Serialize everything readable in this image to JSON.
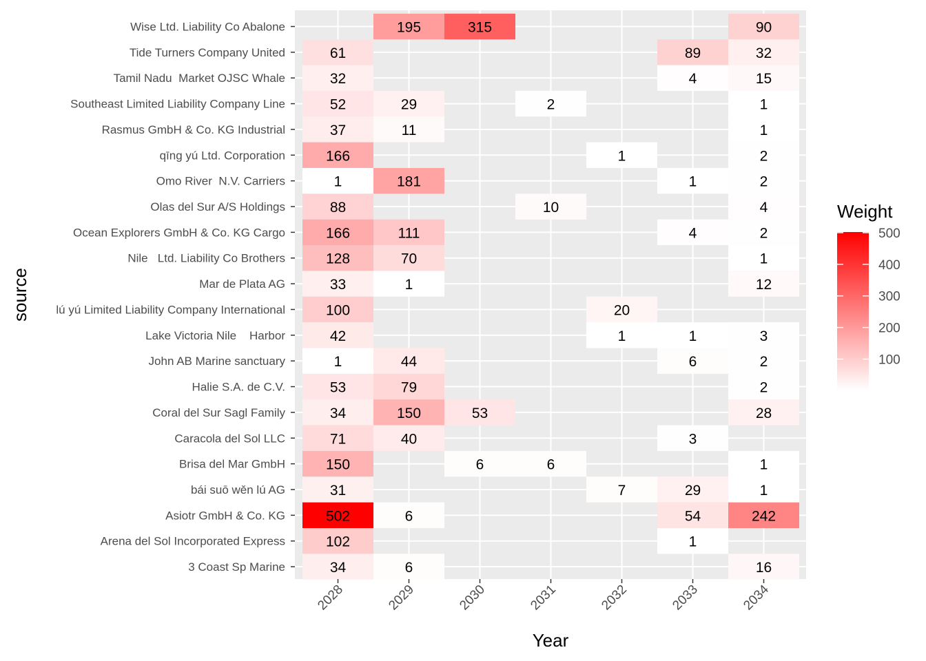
{
  "chart_data": {
    "type": "heatmap",
    "xlabel": "Year",
    "ylabel": "source",
    "x": [
      "2028",
      "2029",
      "2030",
      "2031",
      "2032",
      "2033",
      "2034"
    ],
    "y": [
      "3 Coast Sp Marine",
      "Arena del Sol Incorporated Express",
      "Asiotr GmbH & Co. KG",
      "bái suō wěn lú AG",
      "Brisa del Mar GmbH",
      "Caracola del Sol LLC",
      "Coral del Sur Sagl Family",
      "Halie S.A. de C.V.",
      "John AB Marine sanctuary",
      "Lake Victoria Nile    Harbor",
      "lú yú Limited Liability Company International",
      "Mar de Plata AG",
      "Nile   Ltd. Liability Co Brothers",
      "Ocean Explorers GmbH & Co. KG Cargo",
      "Olas del Sur A/S Holdings",
      "Omo River  N.V. Carriers",
      "qīng yú Ltd. Corporation",
      "Rasmus GmbH & Co. KG Industrial",
      "Southeast Limited Liability Company Line",
      "Tamil Nadu  Market OJSC Whale",
      "Tide Turners Company United",
      "Wise Ltd. Liability Co Abalone"
    ],
    "cells": [
      {
        "y": "Wise Ltd. Liability Co Abalone",
        "x": "2029",
        "value": 195
      },
      {
        "y": "Wise Ltd. Liability Co Abalone",
        "x": "2030",
        "value": 315
      },
      {
        "y": "Wise Ltd. Liability Co Abalone",
        "x": "2034",
        "value": 90
      },
      {
        "y": "Tide Turners Company United",
        "x": "2028",
        "value": 61
      },
      {
        "y": "Tide Turners Company United",
        "x": "2033",
        "value": 89
      },
      {
        "y": "Tide Turners Company United",
        "x": "2034",
        "value": 32
      },
      {
        "y": "Tamil Nadu  Market OJSC Whale",
        "x": "2028",
        "value": 32
      },
      {
        "y": "Tamil Nadu  Market OJSC Whale",
        "x": "2033",
        "value": 4
      },
      {
        "y": "Tamil Nadu  Market OJSC Whale",
        "x": "2034",
        "value": 15
      },
      {
        "y": "Southeast Limited Liability Company Line",
        "x": "2028",
        "value": 52
      },
      {
        "y": "Southeast Limited Liability Company Line",
        "x": "2029",
        "value": 29
      },
      {
        "y": "Southeast Limited Liability Company Line",
        "x": "2031",
        "value": 2
      },
      {
        "y": "Southeast Limited Liability Company Line",
        "x": "2034",
        "value": 1
      },
      {
        "y": "Rasmus GmbH & Co. KG Industrial",
        "x": "2028",
        "value": 37
      },
      {
        "y": "Rasmus GmbH & Co. KG Industrial",
        "x": "2029",
        "value": 11
      },
      {
        "y": "Rasmus GmbH & Co. KG Industrial",
        "x": "2034",
        "value": 1
      },
      {
        "y": "qīng yú Ltd. Corporation",
        "x": "2028",
        "value": 166
      },
      {
        "y": "qīng yú Ltd. Corporation",
        "x": "2032",
        "value": 1
      },
      {
        "y": "qīng yú Ltd. Corporation",
        "x": "2034",
        "value": 2
      },
      {
        "y": "Omo River  N.V. Carriers",
        "x": "2028",
        "value": 1
      },
      {
        "y": "Omo River  N.V. Carriers",
        "x": "2029",
        "value": 181
      },
      {
        "y": "Omo River  N.V. Carriers",
        "x": "2033",
        "value": 1
      },
      {
        "y": "Omo River  N.V. Carriers",
        "x": "2034",
        "value": 2
      },
      {
        "y": "Olas del Sur A/S Holdings",
        "x": "2028",
        "value": 88
      },
      {
        "y": "Olas del Sur A/S Holdings",
        "x": "2031",
        "value": 10
      },
      {
        "y": "Olas del Sur A/S Holdings",
        "x": "2034",
        "value": 4
      },
      {
        "y": "Ocean Explorers GmbH & Co. KG Cargo",
        "x": "2028",
        "value": 166
      },
      {
        "y": "Ocean Explorers GmbH & Co. KG Cargo",
        "x": "2029",
        "value": 111
      },
      {
        "y": "Ocean Explorers GmbH & Co. KG Cargo",
        "x": "2033",
        "value": 4
      },
      {
        "y": "Ocean Explorers GmbH & Co. KG Cargo",
        "x": "2034",
        "value": 2
      },
      {
        "y": "Nile   Ltd. Liability Co Brothers",
        "x": "2028",
        "value": 128
      },
      {
        "y": "Nile   Ltd. Liability Co Brothers",
        "x": "2029",
        "value": 70
      },
      {
        "y": "Nile   Ltd. Liability Co Brothers",
        "x": "2034",
        "value": 1
      },
      {
        "y": "Mar de Plata AG",
        "x": "2028",
        "value": 33
      },
      {
        "y": "Mar de Plata AG",
        "x": "2029",
        "value": 1
      },
      {
        "y": "Mar de Plata AG",
        "x": "2034",
        "value": 12
      },
      {
        "y": "lú yú Limited Liability Company International",
        "x": "2028",
        "value": 100
      },
      {
        "y": "lú yú Limited Liability Company International",
        "x": "2032",
        "value": 20
      },
      {
        "y": "Lake Victoria Nile    Harbor",
        "x": "2028",
        "value": 42
      },
      {
        "y": "Lake Victoria Nile    Harbor",
        "x": "2032",
        "value": 1
      },
      {
        "y": "Lake Victoria Nile    Harbor",
        "x": "2033",
        "value": 1
      },
      {
        "y": "Lake Victoria Nile    Harbor",
        "x": "2034",
        "value": 3
      },
      {
        "y": "John AB Marine sanctuary",
        "x": "2028",
        "value": 1
      },
      {
        "y": "John AB Marine sanctuary",
        "x": "2029",
        "value": 44
      },
      {
        "y": "John AB Marine sanctuary",
        "x": "2033",
        "value": 6
      },
      {
        "y": "John AB Marine sanctuary",
        "x": "2034",
        "value": 2
      },
      {
        "y": "Halie S.A. de C.V.",
        "x": "2028",
        "value": 53
      },
      {
        "y": "Halie S.A. de C.V.",
        "x": "2029",
        "value": 79
      },
      {
        "y": "Halie S.A. de C.V.",
        "x": "2034",
        "value": 2
      },
      {
        "y": "Coral del Sur Sagl Family",
        "x": "2028",
        "value": 34
      },
      {
        "y": "Coral del Sur Sagl Family",
        "x": "2029",
        "value": 150
      },
      {
        "y": "Coral del Sur Sagl Family",
        "x": "2030",
        "value": 53
      },
      {
        "y": "Coral del Sur Sagl Family",
        "x": "2034",
        "value": 28
      },
      {
        "y": "Caracola del Sol LLC",
        "x": "2028",
        "value": 71
      },
      {
        "y": "Caracola del Sol LLC",
        "x": "2029",
        "value": 40
      },
      {
        "y": "Caracola del Sol LLC",
        "x": "2033",
        "value": 3
      },
      {
        "y": "Brisa del Mar GmbH",
        "x": "2028",
        "value": 150
      },
      {
        "y": "Brisa del Mar GmbH",
        "x": "2030",
        "value": 6
      },
      {
        "y": "Brisa del Mar GmbH",
        "x": "2031",
        "value": 6
      },
      {
        "y": "Brisa del Mar GmbH",
        "x": "2034",
        "value": 1
      },
      {
        "y": "bái suō wěn lú AG",
        "x": "2028",
        "value": 31
      },
      {
        "y": "bái suō wěn lú AG",
        "x": "2032",
        "value": 7
      },
      {
        "y": "bái suō wěn lú AG",
        "x": "2033",
        "value": 29
      },
      {
        "y": "bái suō wěn lú AG",
        "x": "2034",
        "value": 1
      },
      {
        "y": "Asiotr GmbH & Co. KG",
        "x": "2028",
        "value": 502
      },
      {
        "y": "Asiotr GmbH & Co. KG",
        "x": "2029",
        "value": 6
      },
      {
        "y": "Asiotr GmbH & Co. KG",
        "x": "2033",
        "value": 54
      },
      {
        "y": "Asiotr GmbH & Co. KG",
        "x": "2034",
        "value": 242
      },
      {
        "y": "Arena del Sol Incorporated Express",
        "x": "2028",
        "value": 102
      },
      {
        "y": "Arena del Sol Incorporated Express",
        "x": "2033",
        "value": 1
      },
      {
        "y": "3 Coast Sp Marine",
        "x": "2028",
        "value": 34
      },
      {
        "y": "3 Coast Sp Marine",
        "x": "2029",
        "value": 6
      },
      {
        "y": "3 Coast Sp Marine",
        "x": "2034",
        "value": 16
      }
    ],
    "color_scale": {
      "low": "#ffffff",
      "high": "#ff0000",
      "min": 1,
      "max": 502
    },
    "legend": {
      "title": "Weight",
      "ticks": [
        100,
        200,
        300,
        400,
        500
      ],
      "placement": "right"
    },
    "background": "#ebebeb",
    "grid": true
  }
}
